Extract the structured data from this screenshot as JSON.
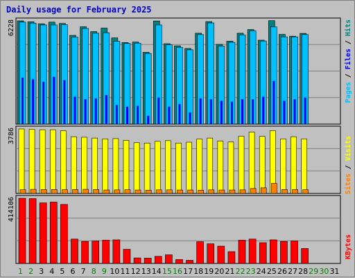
{
  "title": "Daily usage for February 2025",
  "colors": {
    "hits": "#008080",
    "files": "#00c0ff",
    "pages": "#0000ff",
    "visits": "#ffff00",
    "sites": "#ff8000",
    "kbytes": "#ff0000",
    "weekday": "#000000",
    "weekend": "#008000",
    "background": "#c0c0c0"
  },
  "panel_labels": {
    "top_max": "6228",
    "mid_max": "3786",
    "bottom_max": "414106",
    "hits": "Hits",
    "files": "Files",
    "pages": "Pages",
    "visits": "Visits",
    "sites": "Sites",
    "kbytes": "KBytes",
    "sep": " / "
  },
  "chart_data": {
    "type": "bar",
    "title": "Daily usage for February 2025",
    "categories": [
      "1",
      "2",
      "3",
      "4",
      "5",
      "6",
      "7",
      "8",
      "9",
      "10",
      "11",
      "12",
      "13",
      "14",
      "15",
      "16",
      "17",
      "18",
      "19",
      "20",
      "21",
      "22",
      "23",
      "24",
      "25",
      "26",
      "27",
      "28",
      "29",
      "30",
      "31"
    ],
    "weekend_days": [
      "1",
      "2",
      "8",
      "9",
      "15",
      "16",
      "22",
      "23",
      "29",
      "30"
    ],
    "panels": [
      {
        "name": "top",
        "ylim": [
          0,
          6228
        ],
        "series": [
          {
            "name": "Hits",
            "values": [
              6228,
              6170,
              6050,
              6150,
              6070,
              5350,
              5870,
              5580,
              5790,
              5200,
              4920,
              4950,
              4330,
              6220,
              4850,
              4720,
              4560,
              5480,
              6180,
              4810,
              5000,
              5480,
              5700,
              5060,
              6240,
              5410,
              5300,
              5470,
              0,
              0,
              0
            ]
          },
          {
            "name": "Files",
            "values": [
              6150,
              6090,
              5980,
              5980,
              5990,
              5240,
              5770,
              5480,
              5510,
              4990,
              4860,
              4880,
              4260,
              5980,
              4780,
              4630,
              4480,
              5400,
              6100,
              4700,
              4930,
              5380,
              5620,
              5010,
              5860,
              5260,
              5260,
              5400,
              0,
              0,
              0
            ]
          },
          {
            "name": "Pages",
            "values": [
              2800,
              2700,
              2550,
              2850,
              2650,
              1650,
              1500,
              1550,
              1750,
              1150,
              1050,
              1100,
              500,
              1600,
              1050,
              1200,
              700,
              1550,
              1500,
              1400,
              1350,
              1500,
              1500,
              1650,
              2600,
              1400,
              1500,
              1600,
              0,
              0,
              0
            ]
          }
        ]
      },
      {
        "name": "middle",
        "ylim": [
          0,
          3786
        ],
        "series": [
          {
            "name": "Visits",
            "values": [
              3786,
              3770,
              3740,
              3740,
              3680,
              3330,
              3300,
              3250,
              3200,
              3220,
              3120,
              2980,
              2960,
              3060,
              3100,
              2960,
              3010,
              3190,
              3250,
              3080,
              3020,
              3360,
              3600,
              3350,
              3690,
              3200,
              3330,
              3200,
              0,
              0,
              0
            ]
          },
          {
            "name": "Sites",
            "values": [
              220,
              240,
              230,
              230,
              220,
              230,
              240,
              230,
              200,
              210,
              220,
              200,
              190,
              210,
              210,
              200,
              200,
              190,
              210,
              200,
              200,
              210,
              290,
              330,
              590,
              230,
              230,
              220,
              0,
              0,
              0
            ]
          }
        ]
      },
      {
        "name": "bottom",
        "ylim": [
          0,
          414106
        ],
        "series": [
          {
            "name": "KBytes",
            "values": [
              414106,
              412000,
              385000,
              390000,
              375000,
              155000,
              140000,
              143000,
              148000,
              150000,
              90000,
              35000,
              34000,
              45000,
              55000,
              25000,
              20000,
              138000,
              125000,
              110000,
              75000,
              148000,
              155000,
              132000,
              150000,
              140000,
              143000,
              95000,
              0,
              0,
              0
            ]
          }
        ]
      }
    ]
  }
}
